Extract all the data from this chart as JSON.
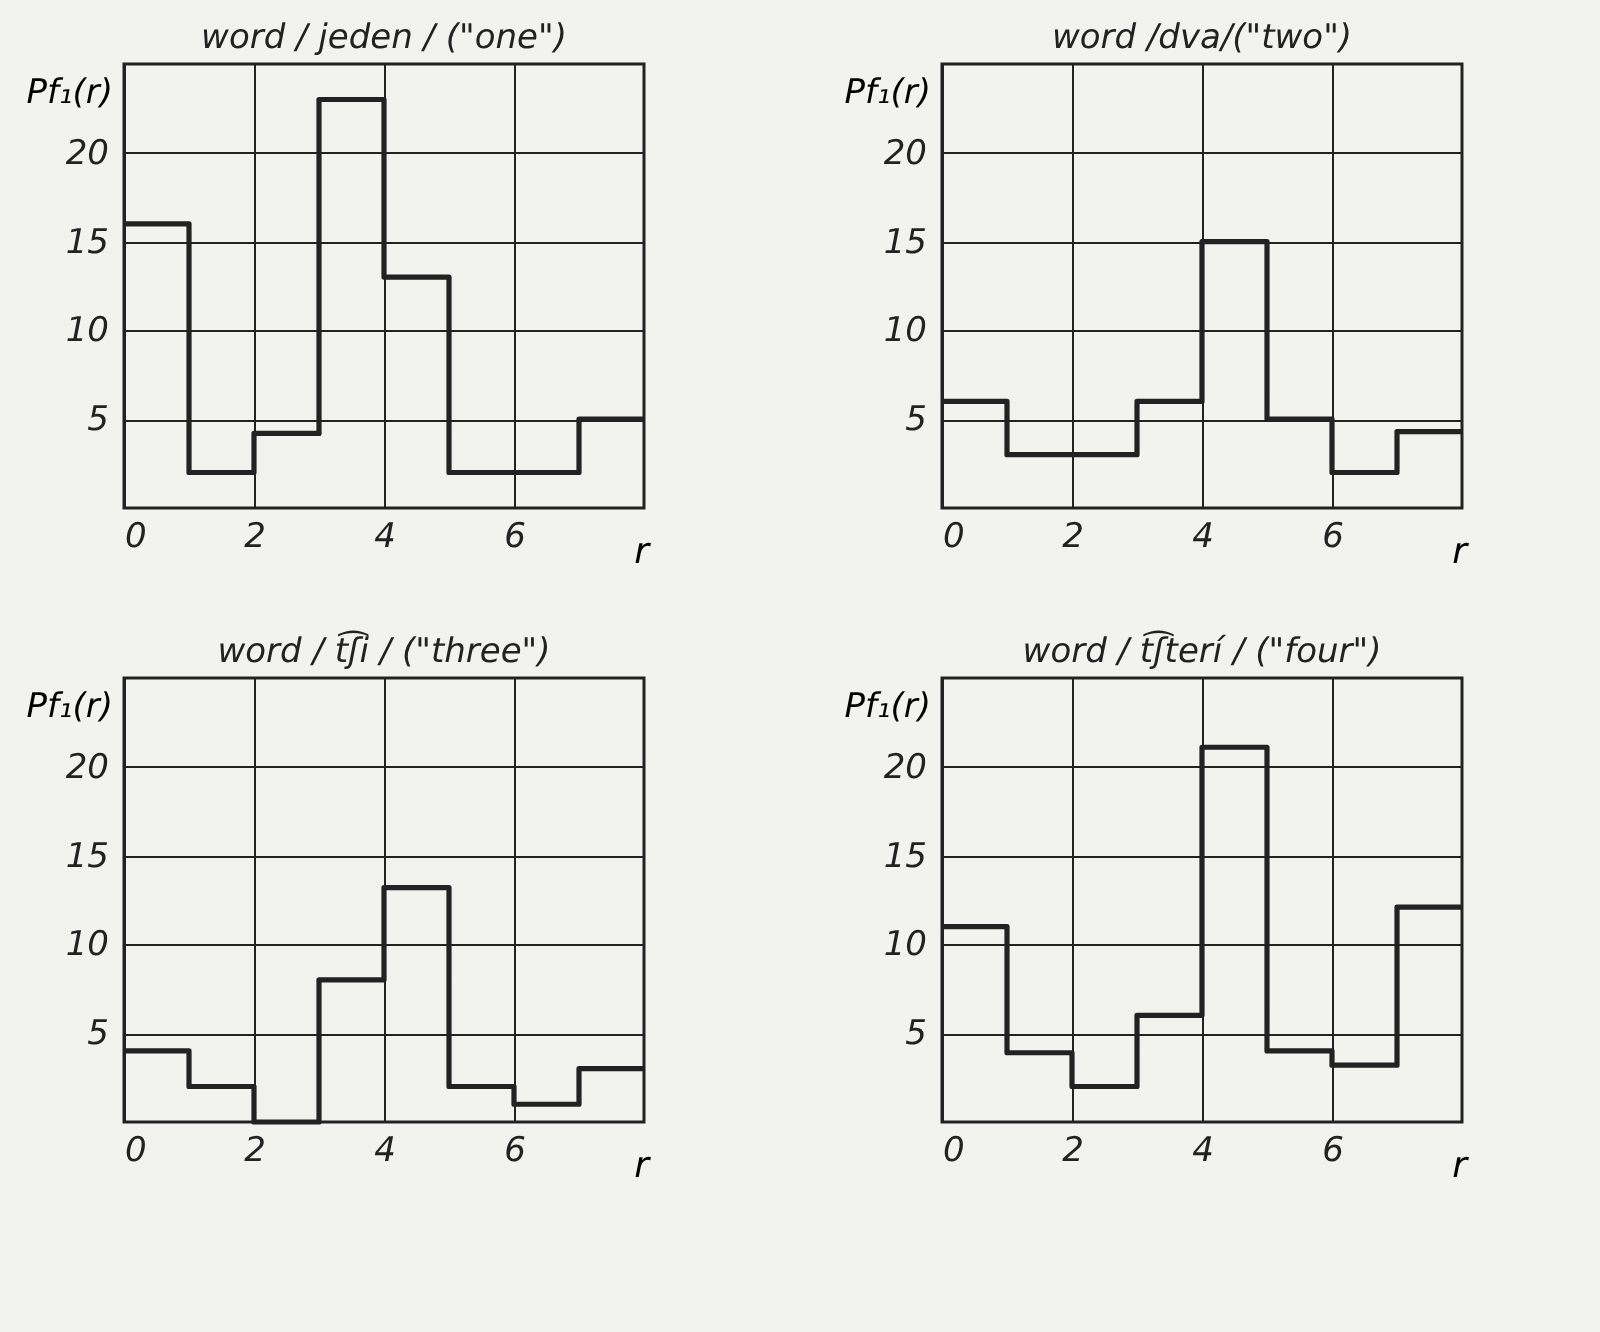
{
  "chart_data": [
    {
      "type": "histogram",
      "title": "word / jeden / (\"one\")",
      "xlabel": "r",
      "ylabel": "Pf₁(r)",
      "bins": [
        0,
        1,
        2,
        3,
        4,
        5,
        6,
        7,
        8
      ],
      "values": [
        16,
        2,
        4.2,
        23,
        13,
        2,
        2,
        5
      ],
      "color": "#222222",
      "xlim": [
        0,
        8
      ],
      "ylim": [
        0,
        25
      ],
      "xticks": [
        0,
        2,
        4,
        6
      ],
      "yticks": [
        5,
        10,
        15,
        20
      ],
      "grid": true
    },
    {
      "type": "histogram",
      "title": "word /dva/(\"two\")",
      "xlabel": "r",
      "ylabel": "Pf₁(r)",
      "bins": [
        0,
        1,
        2,
        3,
        4,
        5,
        6,
        7,
        8
      ],
      "values": [
        6,
        3,
        3,
        6,
        15,
        5,
        2,
        4.3
      ],
      "color": "#222222",
      "xlim": [
        0,
        8
      ],
      "ylim": [
        0,
        25
      ],
      "xticks": [
        0,
        2,
        4,
        6
      ],
      "yticks": [
        5,
        10,
        15,
        20
      ],
      "grid": true
    },
    {
      "type": "histogram",
      "title": "word / t͡ʃi / (\"three\")",
      "xlabel": "r",
      "ylabel": "Pf₁(r)",
      "bins": [
        0,
        1,
        2,
        3,
        4,
        5,
        6,
        7,
        8
      ],
      "values": [
        4,
        2,
        0,
        8,
        13.2,
        2,
        1,
        3
      ],
      "color": "#222222",
      "xlim": [
        0,
        8
      ],
      "ylim": [
        0,
        25
      ],
      "xticks": [
        0,
        2,
        4,
        6
      ],
      "yticks": [
        5,
        10,
        15,
        20
      ],
      "grid": true
    },
    {
      "type": "histogram",
      "title": "word / t͡ʃterí / (\"four\")",
      "xlabel": "r",
      "ylabel": "Pf₁(r)",
      "bins": [
        0,
        1,
        2,
        3,
        4,
        5,
        6,
        7,
        8
      ],
      "values": [
        11,
        3.9,
        2,
        6,
        21.1,
        4,
        3.2,
        12.1
      ],
      "color": "#222222",
      "xlim": [
        0,
        8
      ],
      "ylim": [
        0,
        25
      ],
      "xticks": [
        0,
        2,
        4,
        6
      ],
      "yticks": [
        5,
        10,
        15,
        20
      ],
      "grid": true
    }
  ]
}
